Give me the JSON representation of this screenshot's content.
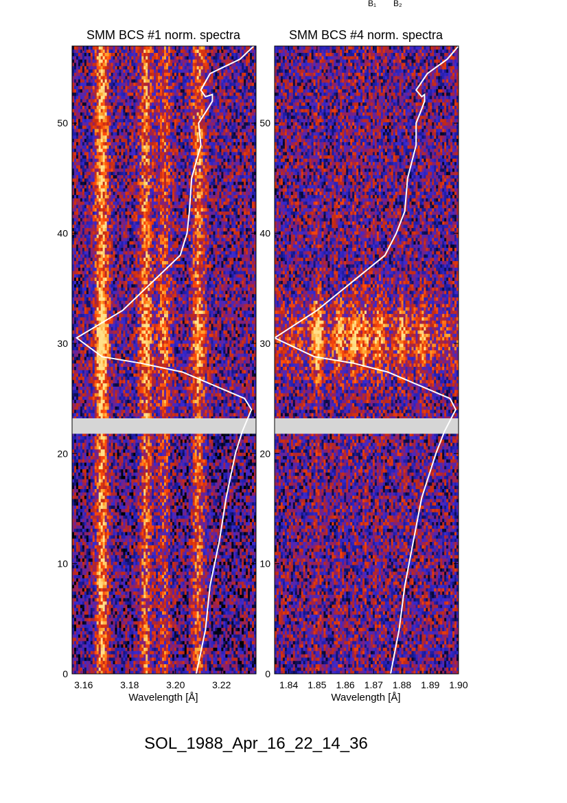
{
  "chart_data": [
    {
      "type": "heatmap",
      "title": "SMM BCS #1 norm. spectra",
      "xlabel": "Wavelength [Å]",
      "ylabel": "",
      "xlim": [
        3.155,
        3.235
      ],
      "ylim": [
        0,
        57
      ],
      "x_ticks": [
        "3.16",
        "3.18",
        "3.20",
        "3.22"
      ],
      "x_tick_values": [
        3.16,
        3.18,
        3.2,
        3.22
      ],
      "y_ticks": [
        "0",
        "10",
        "20",
        "30",
        "40",
        "50"
      ],
      "y_tick_values": [
        0,
        10,
        20,
        30,
        40,
        50
      ],
      "data_gap": [
        21.8,
        23.2
      ],
      "emission_lines": [
        {
          "wavelength": 3.168,
          "strength": 1.0
        },
        {
          "wavelength": 3.187,
          "strength": 0.7
        },
        {
          "wavelength": 3.195,
          "strength": 0.5
        },
        {
          "wavelength": 3.21,
          "strength": 0.7
        }
      ],
      "overlay_curve": {
        "x": [
          3.209,
          3.213,
          3.215,
          3.219,
          3.222,
          3.226,
          3.229,
          3.233,
          3.23,
          3.203,
          3.185,
          3.168,
          3.157,
          3.177,
          3.202,
          3.205,
          3.206,
          3.207,
          3.211,
          3.21,
          3.214,
          3.216,
          3.216,
          3.213,
          3.211,
          3.215,
          3.228,
          3.234
        ],
        "y": [
          0,
          4,
          8,
          12,
          16,
          20,
          22,
          24,
          25,
          27.4,
          28.2,
          28.8,
          30.5,
          33,
          38,
          40,
          42,
          45,
          48,
          50,
          51.3,
          52,
          52.6,
          52.4,
          53,
          54.5,
          55.8,
          57
        ]
      }
    },
    {
      "type": "heatmap",
      "title": "SMM BCS #4 norm. spectra",
      "xlabel": "Wavelength [Å]",
      "ylabel": "",
      "xlim": [
        1.835,
        1.9
      ],
      "ylim": [
        0,
        57
      ],
      "x_ticks": [
        "1.84",
        "1.85",
        "1.86",
        "1.87",
        "1.88",
        "1.89",
        "1.90"
      ],
      "x_tick_values": [
        1.84,
        1.85,
        1.86,
        1.87,
        1.88,
        1.89,
        1.9
      ],
      "y_ticks": [
        "0",
        "10",
        "20",
        "30",
        "40",
        "50"
      ],
      "y_tick_values": [
        0,
        10,
        20,
        30,
        40,
        50
      ],
      "data_gap": [
        21.8,
        23.2
      ],
      "emission_lines": [
        {
          "wavelength": 1.8502,
          "strength": 0.9
        },
        {
          "wavelength": 1.858,
          "strength": 0.6
        },
        {
          "wavelength": 1.863,
          "strength": 0.6
        },
        {
          "wavelength": 1.867,
          "strength": 0.5
        },
        {
          "wavelength": 1.872,
          "strength": 0.5
        },
        {
          "wavelength": 1.88,
          "strength": 0.4
        },
        {
          "wavelength": 1.887,
          "strength": 0.4
        }
      ],
      "overlay_curve": {
        "x": [
          1.876,
          1.879,
          1.881,
          1.884,
          1.887,
          1.892,
          1.895,
          1.899,
          1.897,
          1.875,
          1.863,
          1.849,
          1.835,
          1.85,
          1.874,
          1.878,
          1.881,
          1.882,
          1.885,
          1.885,
          1.887,
          1.888,
          1.888,
          1.887,
          1.885,
          1.889,
          1.896,
          1.9
        ],
        "y": [
          0,
          4,
          8,
          12,
          16,
          20,
          22,
          24,
          25,
          27.4,
          28.2,
          28.8,
          30.5,
          33,
          38,
          40,
          42,
          45,
          48,
          50,
          51.3,
          52,
          52.6,
          52.4,
          53,
          54.5,
          55.8,
          57
        ]
      }
    }
  ],
  "colors": {
    "colormap": [
      "#000000",
      "#1a1a9c",
      "#3a2ad0",
      "#8a1f6e",
      "#c42a14",
      "#ff4a0a",
      "#ffa028",
      "#ffe08a"
    ],
    "curve": "#ffffff",
    "gap": "#d6d6d6"
  },
  "top_labels": {
    "b1": "B₁",
    "b2": "B₂"
  },
  "footer": "SOL_1988_Apr_16_22_14_36"
}
